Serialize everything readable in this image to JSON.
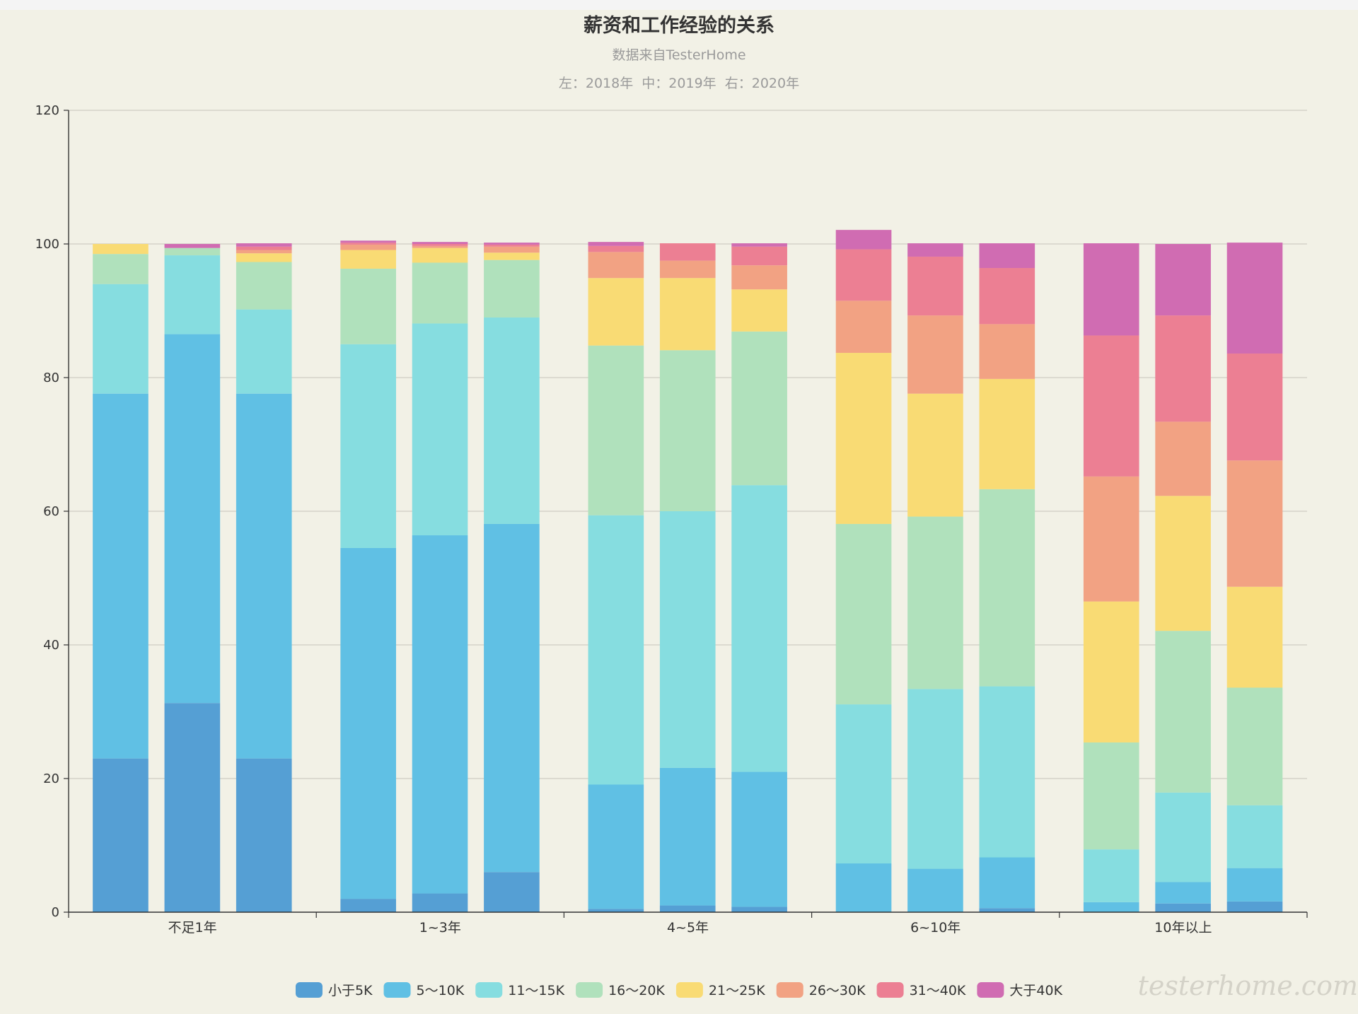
{
  "chart_data": {
    "type": "bar",
    "stacked": true,
    "title": "薪资和工作经验的关系",
    "subtitle": "数据来自TesterHome",
    "note": "左：2018年  中：2019年  右：2020年",
    "ylim": [
      0,
      120
    ],
    "yticks": [
      0,
      20,
      40,
      60,
      80,
      100,
      120
    ],
    "grid": true,
    "legend_position": "bottom",
    "categories": [
      "不足1年",
      "1~3年",
      "4~5年",
      "6~10年",
      "10年以上"
    ],
    "bars_per_category": 3,
    "series": [
      {
        "name": "小于5K",
        "color": "#559fd4",
        "values": [
          [
            23,
            31.3,
            23
          ],
          [
            2,
            2.8,
            6
          ],
          [
            0.5,
            1,
            0.8
          ],
          [
            0,
            0,
            0.6
          ],
          [
            0,
            1.3,
            1.6
          ]
        ]
      },
      {
        "name": "5～10K",
        "color": "#60c0e4",
        "values": [
          [
            54.6,
            55.2,
            54.6
          ],
          [
            52.5,
            53.6,
            52.1
          ],
          [
            18.6,
            20.6,
            20.2
          ],
          [
            7.3,
            6.5,
            7.6
          ],
          [
            1.5,
            3.2,
            5
          ]
        ]
      },
      {
        "name": "11～15K",
        "color": "#86dde0",
        "values": [
          [
            16.4,
            11.8,
            12.6
          ],
          [
            30.5,
            31.7,
            30.9
          ],
          [
            40.3,
            38.4,
            42.9
          ],
          [
            23.8,
            26.9,
            25.6
          ],
          [
            7.9,
            13.4,
            9.4
          ]
        ]
      },
      {
        "name": "16～20K",
        "color": "#b0e1bc",
        "values": [
          [
            4.5,
            1.1,
            7.1
          ],
          [
            11.3,
            9.1,
            8.6
          ],
          [
            25.4,
            24.1,
            23
          ],
          [
            27,
            25.8,
            29.5
          ],
          [
            16,
            24.2,
            17.6
          ]
        ]
      },
      {
        "name": "21～25K",
        "color": "#f9db74",
        "values": [
          [
            1.5,
            0,
            1.3
          ],
          [
            2.8,
            2.2,
            1.1
          ],
          [
            10.1,
            10.8,
            6.3
          ],
          [
            25.6,
            18.4,
            16.5
          ],
          [
            21.1,
            20.2,
            15.1
          ]
        ]
      },
      {
        "name": "26～30K",
        "color": "#f2a283",
        "values": [
          [
            0,
            0,
            0.5
          ],
          [
            0.8,
            0.3,
            0.9
          ],
          [
            3.9,
            2.6,
            3.6
          ],
          [
            7.8,
            11.7,
            8.2
          ],
          [
            18.7,
            11.1,
            18.9
          ]
        ]
      },
      {
        "name": "31～40K",
        "color": "#ec7f93",
        "values": [
          [
            0,
            0,
            0.5
          ],
          [
            0.3,
            0.3,
            0.3
          ],
          [
            0.9,
            2.6,
            2.8
          ],
          [
            7.7,
            8.8,
            8.4
          ],
          [
            21.1,
            15.9,
            16
          ]
        ]
      },
      {
        "name": "大于40K",
        "color": "#d06cb2",
        "values": [
          [
            0,
            0.6,
            0.5
          ],
          [
            0.3,
            0.3,
            0.3
          ],
          [
            0.6,
            0,
            0.5
          ],
          [
            2.9,
            2,
            3.7
          ],
          [
            13.8,
            10.7,
            16.6
          ]
        ]
      }
    ]
  },
  "watermark": "testerhome.com"
}
